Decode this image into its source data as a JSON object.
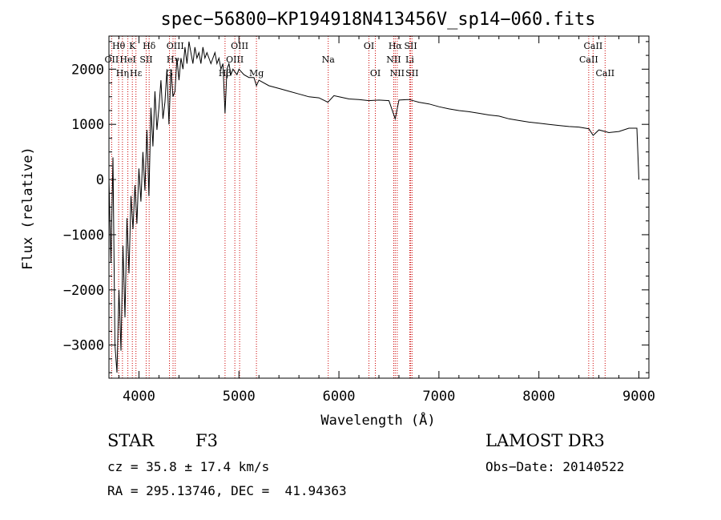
{
  "chart_data": {
    "type": "line",
    "title": "spec−56800−KP194918N413456V_sp14−060.fits",
    "xlabel": "Wavelength (Å)",
    "ylabel": "Flux (relative)",
    "xlim": [
      3700,
      9100
    ],
    "ylim": [
      -3600,
      2600
    ],
    "xticks": [
      4000,
      5000,
      6000,
      7000,
      8000,
      9000
    ],
    "yticks": [
      -3000,
      -2000,
      -1000,
      0,
      1000,
      2000
    ],
    "ytick_labels": [
      "−3000",
      "−2000",
      "−1000",
      "0",
      "1000",
      "2000"
    ],
    "series": [
      {
        "name": "flux",
        "x": [
          3700,
          3720,
          3740,
          3760,
          3780,
          3800,
          3820,
          3840,
          3860,
          3880,
          3900,
          3920,
          3940,
          3960,
          3980,
          4000,
          4020,
          4040,
          4060,
          4080,
          4100,
          4120,
          4140,
          4160,
          4180,
          4200,
          4220,
          4240,
          4260,
          4280,
          4300,
          4320,
          4340,
          4360,
          4380,
          4400,
          4420,
          4440,
          4460,
          4480,
          4500,
          4520,
          4540,
          4560,
          4580,
          4600,
          4620,
          4640,
          4660,
          4680,
          4700,
          4720,
          4740,
          4760,
          4780,
          4800,
          4820,
          4840,
          4861,
          4880,
          4900,
          4920,
          4940,
          4960,
          4980,
          5000,
          5050,
          5100,
          5150,
          5175,
          5200,
          5300,
          5400,
          5500,
          5600,
          5700,
          5800,
          5890,
          5950,
          6000,
          6100,
          6200,
          6300,
          6400,
          6500,
          6563,
          6600,
          6700,
          6800,
          6900,
          7000,
          7100,
          7200,
          7300,
          7400,
          7500,
          7600,
          7700,
          7800,
          7900,
          8000,
          8100,
          8200,
          8300,
          8400,
          8500,
          8542,
          8600,
          8700,
          8800,
          8900,
          8980,
          9000
        ],
        "y": [
          0,
          -1500,
          400,
          -3000,
          -3500,
          -2000,
          -3100,
          -1200,
          -2500,
          -700,
          -1700,
          -300,
          -900,
          -100,
          -800,
          200,
          -400,
          500,
          -200,
          900,
          -300,
          1300,
          600,
          1600,
          900,
          1300,
          1800,
          1100,
          1400,
          2000,
          1000,
          2000,
          1500,
          1600,
          2200,
          1800,
          2200,
          2000,
          2400,
          2100,
          2500,
          2300,
          2100,
          2400,
          2200,
          2300,
          2100,
          2400,
          2200,
          2300,
          2200,
          2100,
          2200,
          2300,
          2100,
          2200,
          2000,
          2100,
          1200,
          2000,
          2100,
          1900,
          2000,
          1950,
          1900,
          2000,
          1900,
          1850,
          1850,
          1700,
          1800,
          1700,
          1650,
          1600,
          1550,
          1500,
          1480,
          1400,
          1520,
          1500,
          1460,
          1450,
          1430,
          1440,
          1430,
          1100,
          1440,
          1450,
          1400,
          1370,
          1320,
          1280,
          1250,
          1230,
          1200,
          1170,
          1150,
          1100,
          1070,
          1040,
          1020,
          1000,
          980,
          960,
          950,
          920,
          800,
          900,
          850,
          870,
          930,
          930,
          0
        ]
      }
    ],
    "spectral_lines": [
      {
        "label": "Hθ",
        "wavelength": 3797,
        "row": 0
      },
      {
        "label": "OII",
        "wavelength": 3727,
        "row": 1
      },
      {
        "label": "Hη",
        "wavelength": 3835,
        "row": 2
      },
      {
        "label": "K",
        "wavelength": 3934,
        "row": 0
      },
      {
        "label": "HeI",
        "wavelength": 3889,
        "row": 1
      },
      {
        "label": "Hε",
        "wavelength": 3970,
        "row": 2
      },
      {
        "label": "Hδ",
        "wavelength": 4102,
        "row": 0
      },
      {
        "label": "SII",
        "wavelength": 4072,
        "row": 1
      },
      {
        "label": "OIII",
        "wavelength": 4363,
        "row": 0
      },
      {
        "label": "Hγ",
        "wavelength": 4341,
        "row": 1
      },
      {
        "label": "G",
        "wavelength": 4305,
        "row": 2
      },
      {
        "label": "OIII",
        "wavelength": 5007,
        "row": 0
      },
      {
        "label": "OIII",
        "wavelength": 4959,
        "row": 1
      },
      {
        "label": "Hβ",
        "wavelength": 4861,
        "row": 2
      },
      {
        "label": "Mg",
        "wavelength": 5175,
        "row": 2
      },
      {
        "label": "Na",
        "wavelength": 5893,
        "row": 1
      },
      {
        "label": "OI",
        "wavelength": 6300,
        "row": 0
      },
      {
        "label": "OI",
        "wavelength": 6364,
        "row": 2
      },
      {
        "label": "Hα",
        "wavelength": 6563,
        "row": 0
      },
      {
        "label": "NII",
        "wavelength": 6548,
        "row": 1
      },
      {
        "label": "NII",
        "wavelength": 6583,
        "row": 2
      },
      {
        "label": "SII",
        "wavelength": 6717,
        "row": 0
      },
      {
        "label": "Li",
        "wavelength": 6708,
        "row": 1
      },
      {
        "label": "SII",
        "wavelength": 6731,
        "row": 2
      },
      {
        "label": "CaII",
        "wavelength": 8542,
        "row": 0
      },
      {
        "label": "CaII",
        "wavelength": 8498,
        "row": 1
      },
      {
        "label": "CaII",
        "wavelength": 8662,
        "row": 2
      }
    ],
    "colors": {
      "line": "#000000",
      "marker_lines": "#cc0000",
      "axes": "#000000"
    }
  },
  "info": {
    "object_class": "STAR",
    "subclass": "F3",
    "survey": "LAMOST DR3",
    "redshift": "cz = 35.8 ± 17.4 km/s",
    "obs_date": "Obs−Date: 20140522",
    "coords": "RA = 295.13746, DEC =  41.94363"
  }
}
